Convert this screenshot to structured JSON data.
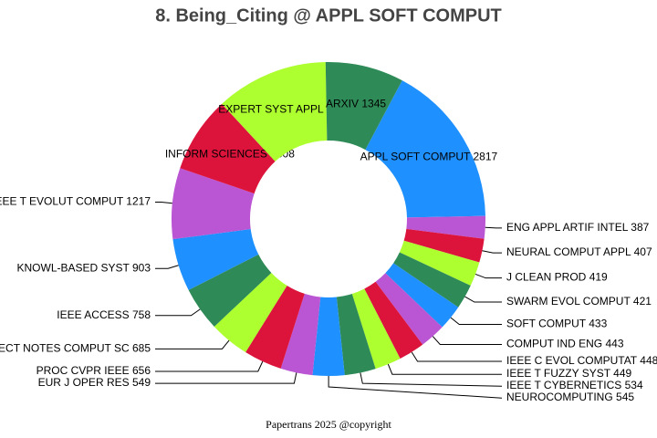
{
  "chart_data": {
    "type": "donut",
    "title": "8. Being_Citing @ APPL SOFT COMPUT",
    "categories": [
      "APPL SOFT COMPUT",
      "ENG APPL ARTIF INTEL",
      "NEURAL COMPUT APPL",
      "J CLEAN PROD",
      "SWARM EVOL COMPUT",
      "SOFT COMPUT",
      "COMPUT IND ENG",
      "IEEE C EVOL COMPUTAT",
      "IEEE T FUZZY SYST",
      "IEEE T CYBERNETICS",
      "NEUROCOMPUTING",
      "EUR J OPER RES",
      "PROC CVPR IEEE",
      "LECT NOTES COMPUT SC",
      "IEEE ACCESS",
      "KNOWL-BASED SYST",
      "IEEE T EVOLUT COMPUT",
      "INFORM SCIENCES",
      "EXPERT SYST APPL",
      "ARXIV"
    ],
    "values": [
      2817,
      387,
      407,
      419,
      421,
      433,
      443,
      448,
      449,
      534,
      545,
      549,
      656,
      685,
      758,
      903,
      1217,
      1308,
      1931,
      1345
    ],
    "colors": [
      "#1e90ff",
      "#ba55d3",
      "#dc143c",
      "#adff2f",
      "#2e8b57",
      "#1e90ff",
      "#ba55d3",
      "#dc143c",
      "#adff2f",
      "#2e8b57",
      "#1e90ff",
      "#ba55d3",
      "#dc143c",
      "#adff2f",
      "#2e8b57",
      "#1e90ff",
      "#ba55d3",
      "#dc143c",
      "#adff2f",
      "#2e8b57"
    ],
    "footer": "Papertrans 2025 @copyright"
  }
}
